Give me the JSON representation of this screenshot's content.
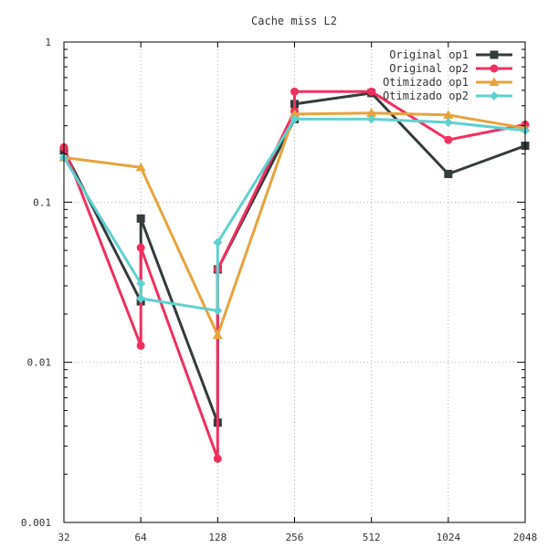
{
  "chart_data": {
    "type": "line",
    "title": "Cache miss L2",
    "xlabel": "",
    "ylabel": "",
    "x_scale": "log2",
    "y_scale": "log10",
    "categories": [
      "32",
      "64",
      "128",
      "256",
      "512",
      "1024",
      "2048"
    ],
    "xlim": [
      32,
      2048
    ],
    "ylim": [
      0.001,
      1
    ],
    "y_ticks": [
      "1",
      "0.1",
      "0.01",
      "0.001"
    ],
    "grid": true,
    "legend_position": "top-right",
    "series": [
      {
        "name": "Original op1",
        "color": "#333c3a",
        "marker": "square",
        "points": [
          [
            32,
            0.21
          ],
          [
            64,
            0.024
          ],
          [
            64,
            0.079
          ],
          [
            128,
            0.0042
          ],
          [
            128,
            0.038
          ],
          [
            256,
            0.33
          ],
          [
            256,
            0.41
          ],
          [
            512,
            0.48
          ],
          [
            1024,
            0.15
          ],
          [
            2048,
            0.225
          ]
        ]
      },
      {
        "name": "Original op2",
        "color": "#f03060",
        "marker": "circle",
        "points": [
          [
            32,
            0.22
          ],
          [
            64,
            0.0127
          ],
          [
            64,
            0.052
          ],
          [
            128,
            0.0025
          ],
          [
            128,
            0.038
          ],
          [
            256,
            0.37
          ],
          [
            256,
            0.49
          ],
          [
            512,
            0.49
          ],
          [
            1024,
            0.245
          ],
          [
            2048,
            0.305
          ]
        ]
      },
      {
        "name": "Otimizado op1",
        "color": "#e8a33c",
        "marker": "triangle",
        "points": [
          [
            32,
            0.19
          ],
          [
            64,
            0.165
          ],
          [
            128,
            0.0148
          ],
          [
            256,
            0.355
          ],
          [
            512,
            0.36
          ],
          [
            1024,
            0.35
          ],
          [
            2048,
            0.29
          ]
        ]
      },
      {
        "name": "Otimizado op2",
        "color": "#5fd1cf",
        "marker": "diamond",
        "points": [
          [
            32,
            0.19
          ],
          [
            64,
            0.031
          ],
          [
            64,
            0.025
          ],
          [
            128,
            0.021
          ],
          [
            128,
            0.056
          ],
          [
            256,
            0.33
          ],
          [
            512,
            0.33
          ],
          [
            1024,
            0.315
          ],
          [
            2048,
            0.28
          ]
        ]
      }
    ]
  }
}
